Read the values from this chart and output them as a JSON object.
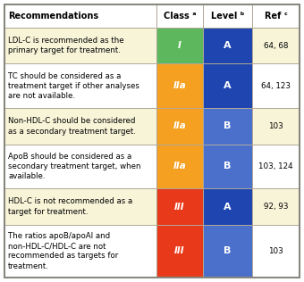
{
  "title_row": [
    "Recommendations",
    "Class ᵃ",
    "Level ᵇ",
    "Ref ᶜ"
  ],
  "rows": [
    {
      "text": "LDL-C is recommended as the\nprimary target for treatment.",
      "class_text": "I",
      "level_text": "A",
      "ref_text": "64, 68",
      "class_color": "#5db85d",
      "level_color": "#1f45b0",
      "row_bg": "#f7f4d8"
    },
    {
      "text": "TC should be considered as a\ntreatment target if other analyses\nare not available.",
      "class_text": "IIa",
      "level_text": "A",
      "ref_text": "64, 123",
      "class_color": "#f5a020",
      "level_color": "#1f45b0",
      "row_bg": "#ffffff"
    },
    {
      "text": "Non-HDL-C should be considered\nas a secondary treatment target.",
      "class_text": "IIa",
      "level_text": "B",
      "ref_text": "103",
      "class_color": "#f5a020",
      "level_color": "#4a70cc",
      "row_bg": "#f7f4d8"
    },
    {
      "text": "ApoB should be considered as a\nsecondary treatment target, when\navailable.",
      "class_text": "IIa",
      "level_text": "B",
      "ref_text": "103, 124",
      "class_color": "#f5a020",
      "level_color": "#4a70cc",
      "row_bg": "#ffffff"
    },
    {
      "text": "HDL-C is not recommended as a\ntarget for treatment.",
      "class_text": "III",
      "level_text": "A",
      "ref_text": "92, 93",
      "class_color": "#e83a1a",
      "level_color": "#1f45b0",
      "row_bg": "#f7f4d8"
    },
    {
      "text": "The ratios apoB/apoAI and\nnon-HDL-C/HDL-C are not\nrecommended as targets for\ntreatment.",
      "class_text": "III",
      "level_text": "B",
      "ref_text": "103",
      "class_color": "#e83a1a",
      "level_color": "#4a70cc",
      "row_bg": "#ffffff"
    }
  ],
  "header_bg": "#ffffff",
  "border_color": "#b0a898",
  "outer_border": "#888880",
  "figsize": [
    3.4,
    3.16
  ],
  "dpi": 100
}
